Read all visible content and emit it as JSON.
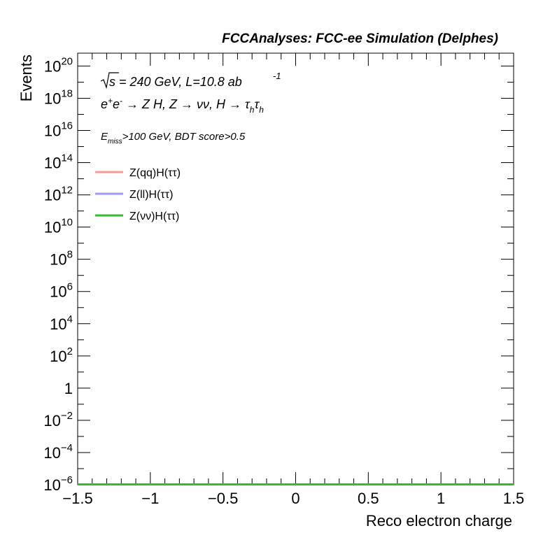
{
  "header": {
    "title": "FCCAnalyses: FCC-ee Simulation (Delphes)"
  },
  "annotations": {
    "sqrt_s": "= 240 GeV, L=10.8 ab",
    "lumi_exp": "-1",
    "process": "e⁺e⁻ → Z H, Z → νν, H → τhτh",
    "process_parts": {
      "p1": "e",
      "p1_sup_plus": "+",
      "p1b": "e",
      "p1_sup_minus": "-",
      "p2": " → Z H, Z  → νν, H → τ",
      "sub_h1": "h",
      "p3": "τ",
      "sub_h2": "h"
    },
    "cut_prefix": "E",
    "cut_sub": "miss",
    "cut_rest": ">100 GeV, BDT score>0.5"
  },
  "chart_data": {
    "type": "line",
    "title": "",
    "xlabel": "Reco electron charge",
    "ylabel": "Events",
    "xlim": [
      -1.5,
      1.5
    ],
    "ylim_log10": [
      -6,
      20.8
    ],
    "yscale": "log",
    "grid": false,
    "legend_position": "top-left",
    "x_ticks": [
      {
        "value": -1.5,
        "label": "−1.5"
      },
      {
        "value": -1.0,
        "label": "−1"
      },
      {
        "value": -0.5,
        "label": "−0.5"
      },
      {
        "value": 0.0,
        "label": "0"
      },
      {
        "value": 0.5,
        "label": "0.5"
      },
      {
        "value": 1.0,
        "label": "1"
      },
      {
        "value": 1.5,
        "label": "1.5"
      }
    ],
    "y_ticks": [
      {
        "exp": -6,
        "base": "10",
        "sup": "−6"
      },
      {
        "exp": -4,
        "base": "10",
        "sup": "−4"
      },
      {
        "exp": -2,
        "base": "10",
        "sup": "−2"
      },
      {
        "exp": 0,
        "base": "1",
        "sup": ""
      },
      {
        "exp": 2,
        "base": "10",
        "sup": "2"
      },
      {
        "exp": 4,
        "base": "10",
        "sup": "4"
      },
      {
        "exp": 6,
        "base": "10",
        "sup": "6"
      },
      {
        "exp": 8,
        "base": "10",
        "sup": "8"
      },
      {
        "exp": 10,
        "base": "10",
        "sup": "10"
      },
      {
        "exp": 12,
        "base": "10",
        "sup": "12"
      },
      {
        "exp": 14,
        "base": "10",
        "sup": "14"
      },
      {
        "exp": 16,
        "base": "10",
        "sup": "16"
      },
      {
        "exp": 18,
        "base": "10",
        "sup": "18"
      },
      {
        "exp": 20,
        "base": "10",
        "sup": "20"
      }
    ],
    "series": [
      {
        "name": "Z(qq)H(ττ)",
        "color": "#ff9999",
        "x": [
          -1.5,
          1.5
        ],
        "y": [
          1e-06,
          1e-06
        ]
      },
      {
        "name": "Z(ll)H(ττ)",
        "color": "#9999ff",
        "x": [
          -1.5,
          1.5
        ],
        "y": [
          1e-06,
          1e-06
        ]
      },
      {
        "name": "Z(νν)H(ττ)",
        "color": "#33bb33",
        "x": [
          -1.5,
          1.5
        ],
        "y": [
          1e-06,
          1e-06
        ]
      }
    ]
  }
}
